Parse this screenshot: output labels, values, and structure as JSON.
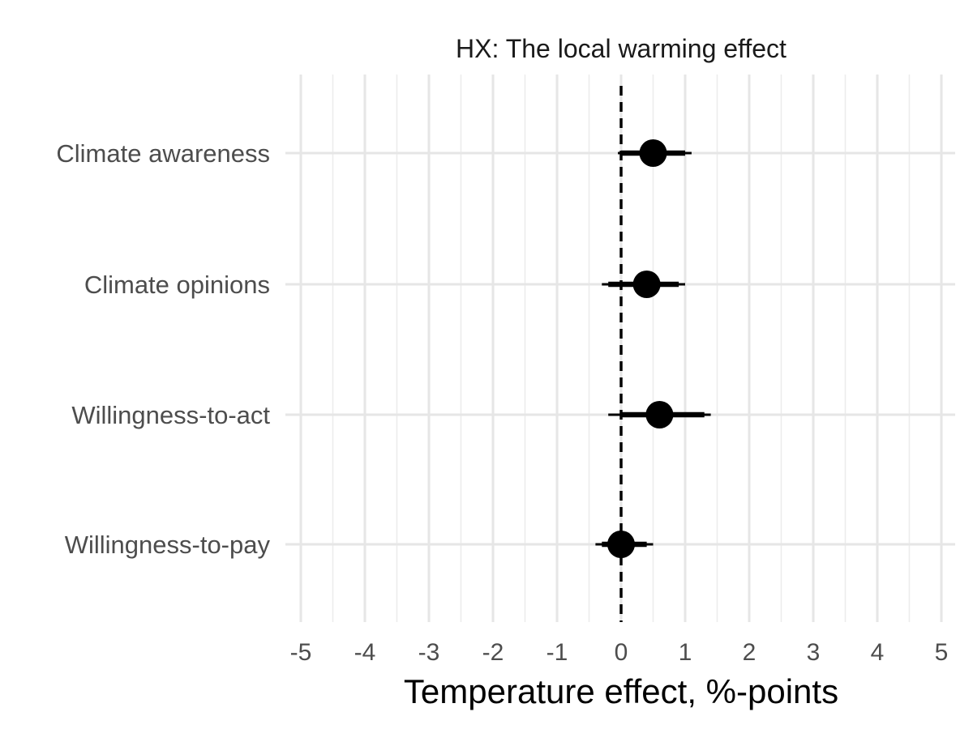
{
  "chart_data": {
    "type": "scatter",
    "title": "HX: The local warming effect",
    "xlabel": "Temperature effect, %-points",
    "ylabel": "",
    "xlim": [
      -5,
      5
    ],
    "x_ticks": [
      "-5",
      "-4",
      "-3",
      "-2",
      "-1",
      "0",
      "1",
      "2",
      "3",
      "4",
      "5"
    ],
    "grid": true,
    "reference_line": {
      "x": 0,
      "style": "dashed"
    },
    "categories": [
      "Climate awareness",
      "Climate opinions",
      "Willingness-to-act",
      "Willingness-to-pay"
    ],
    "estimates": [
      0.5,
      0.4,
      0.6,
      0.0
    ],
    "ci_inner": [
      [
        0.0,
        1.0
      ],
      [
        -0.2,
        0.9
      ],
      [
        0.0,
        1.3
      ],
      [
        -0.3,
        0.4
      ]
    ],
    "ci_outer": [
      [
        -0.05,
        1.1
      ],
      [
        -0.3,
        1.0
      ],
      [
        -0.2,
        1.4
      ],
      [
        -0.4,
        0.5
      ]
    ]
  }
}
